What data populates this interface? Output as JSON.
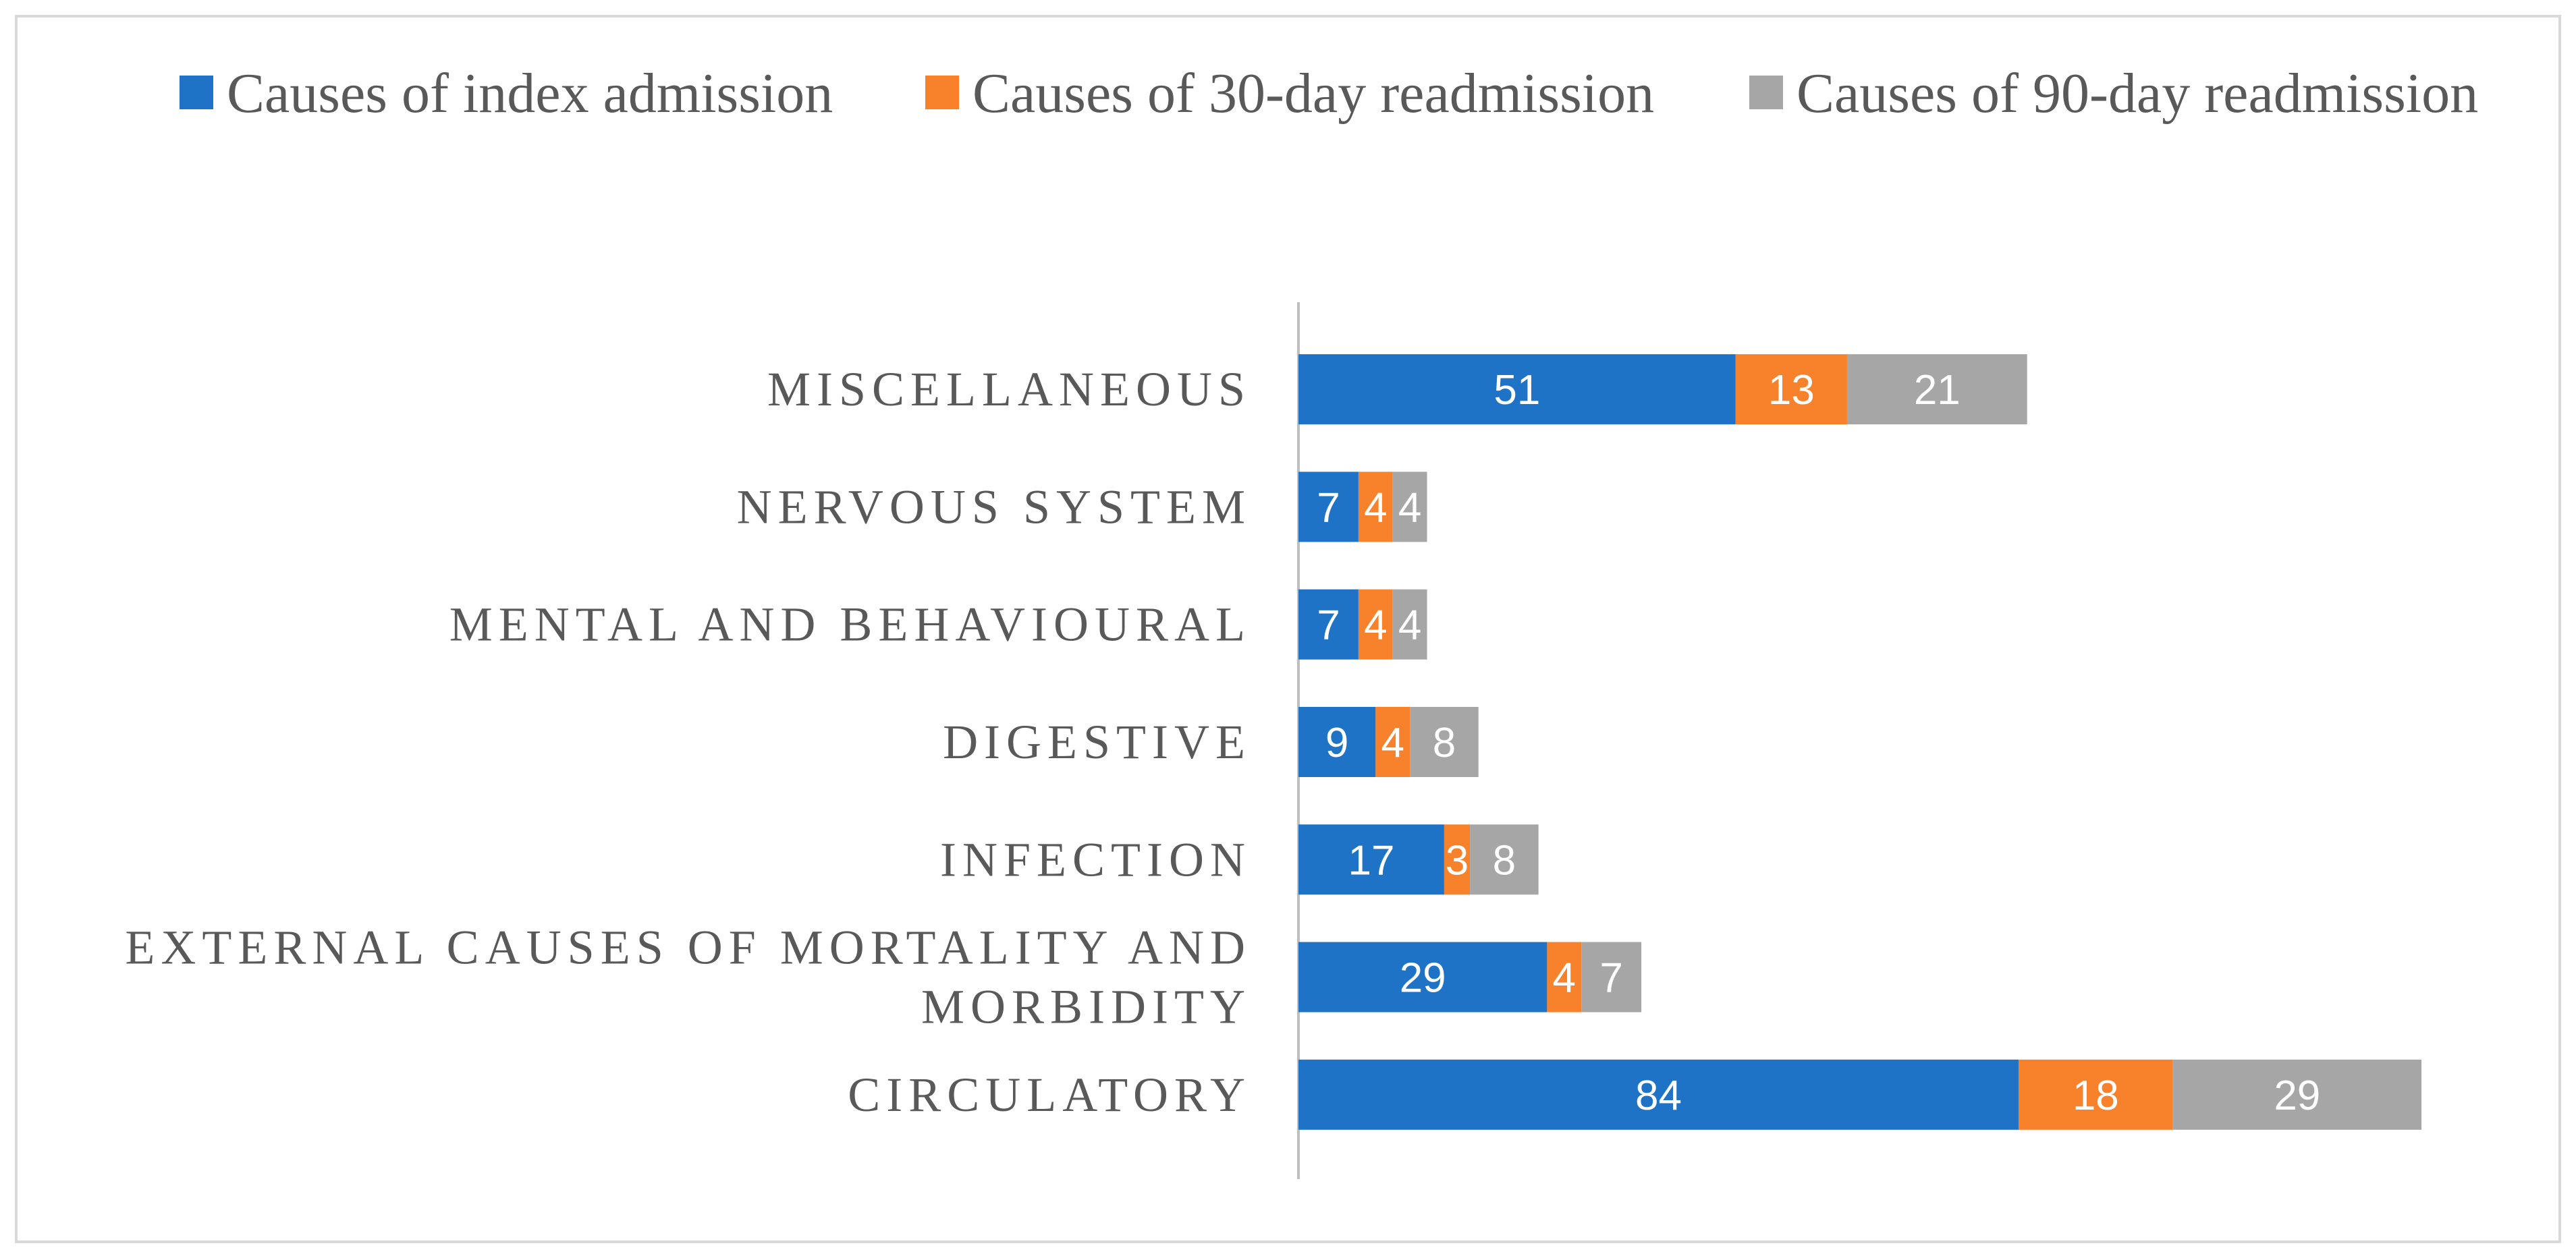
{
  "chart_data": {
    "type": "bar",
    "orientation": "horizontal",
    "stacked": true,
    "title": "",
    "xlabel": "",
    "ylabel": "",
    "categories": [
      "CIRCULATORY",
      "EXTERNAL CAUSES OF MORTALITY AND MORBIDITY",
      "INFECTION",
      "DIGESTIVE",
      "MENTAL AND BEHAVIOURAL",
      "NERVOUS SYSTEM",
      "MISCELLANEOUS"
    ],
    "category_lines": [
      [
        "CIRCULATORY"
      ],
      [
        "EXTERNAL CAUSES OF MORTALITY AND",
        "MORBIDITY"
      ],
      [
        "INFECTION"
      ],
      [
        "DIGESTIVE"
      ],
      [
        "MENTAL AND BEHAVIOURAL"
      ],
      [
        "NERVOUS SYSTEM"
      ],
      [
        "MISCELLANEOUS"
      ]
    ],
    "series": [
      {
        "name": "Causes of index admission",
        "color": "#1f73c7",
        "values": [
          84,
          29,
          17,
          9,
          7,
          7,
          51
        ]
      },
      {
        "name": "Causes of 30-day readmission",
        "color": "#f7822b",
        "values": [
          18,
          4,
          3,
          4,
          4,
          4,
          13
        ]
      },
      {
        "name": "Causes of 90-day readmission",
        "color": "#a6a6a6",
        "values": [
          29,
          7,
          8,
          8,
          4,
          4,
          21
        ]
      }
    ],
    "legend_position": "top",
    "grid": false,
    "data_labels": true,
    "xlim": [
      0,
      131
    ]
  },
  "colors": {
    "axis": "#bfbfbf",
    "label_text": "#595959",
    "frame_border": "#d9d9d9",
    "data_label_text": "#ffffff"
  }
}
